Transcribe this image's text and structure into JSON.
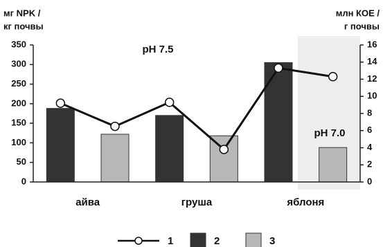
{
  "chart_data": {
    "type": "bar-line",
    "y_label": [
      "мг NPK /",
      "кг почвы"
    ],
    "y2_label": [
      "млн КОЕ /",
      "г почвы"
    ],
    "annotations": [
      "pH 7.5",
      "pH 7.0"
    ],
    "categories": [
      "айва",
      "груша",
      "яблоня"
    ],
    "series": [
      {
        "name": "1",
        "type": "line",
        "axis": "y2",
        "color": "#111111",
        "values": [
          [
            9.2,
            6.5
          ],
          [
            9.3,
            3.8
          ],
          [
            13.3,
            12.3
          ]
        ]
      },
      {
        "name": "2",
        "type": "bar",
        "color": "#333333",
        "values": [
          188,
          170,
          305
        ]
      },
      {
        "name": "3",
        "type": "bar",
        "color": "#b8b8b8",
        "values": [
          122,
          118,
          88
        ]
      }
    ],
    "ylim": [
      0,
      350
    ],
    "yticks": [
      0,
      50,
      100,
      150,
      200,
      250,
      300,
      350
    ],
    "y2lim": [
      0,
      16
    ],
    "y2ticks": [
      0,
      2,
      4,
      6,
      8,
      10,
      12,
      14,
      16
    ]
  }
}
